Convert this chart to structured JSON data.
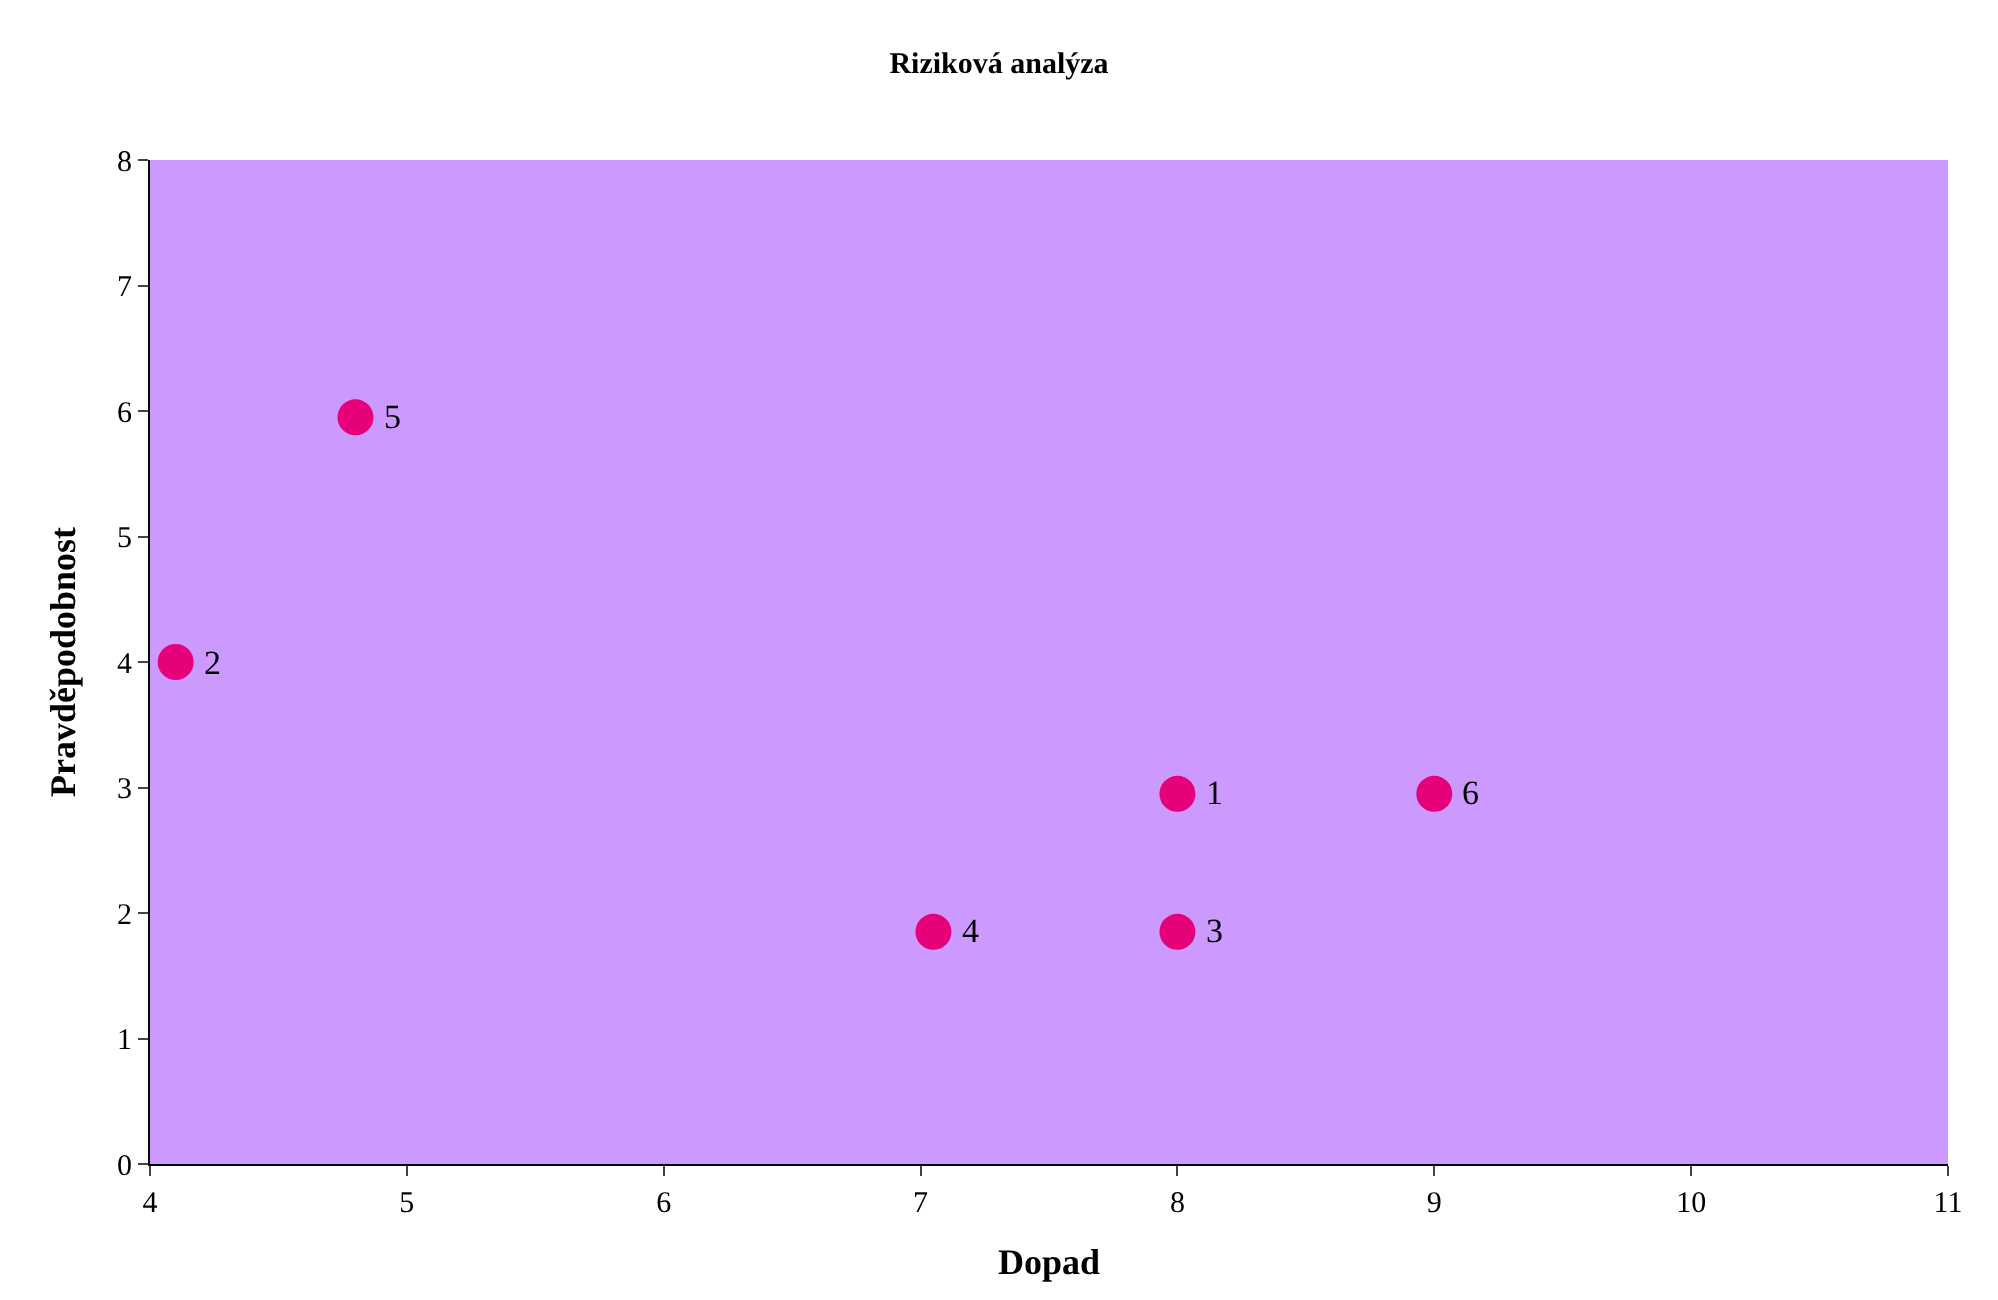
{
  "chart_data": {
    "type": "scatter",
    "title": "Riziková analýza",
    "xlabel": "Dopad",
    "ylabel": "Pravděpodobnost",
    "x": [
      8.0,
      4.1,
      8.0,
      7.05,
      4.8,
      9.0
    ],
    "values": [
      2.95,
      4.0,
      1.85,
      1.85,
      5.95,
      2.95
    ],
    "annotations": [
      {
        "text": "1",
        "x": 8.0,
        "y": 2.95
      },
      {
        "text": "2",
        "x": 4.1,
        "y": 4.0
      },
      {
        "text": "3",
        "x": 8.0,
        "y": 1.85
      },
      {
        "text": "4",
        "x": 7.05,
        "y": 1.85
      },
      {
        "text": "5",
        "x": 4.8,
        "y": 5.95
      },
      {
        "text": "6",
        "x": 9.0,
        "y": 2.95
      }
    ],
    "color": "#e6007a",
    "marker": "circle",
    "xlim": [
      4,
      11
    ],
    "xticks": [
      4,
      5,
      6,
      7,
      8,
      9,
      10,
      11
    ],
    "ylim": [
      0,
      8
    ],
    "yticks": [
      0,
      1,
      2,
      3,
      4,
      5,
      6,
      7,
      8
    ],
    "grid": false,
    "legend": false
  }
}
